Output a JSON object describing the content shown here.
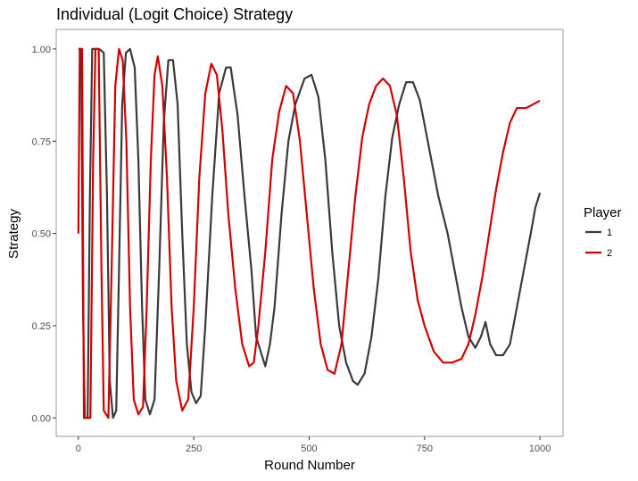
{
  "chart_data": {
    "type": "line",
    "title": "Individual (Logit Choice) Strategy",
    "x_label": "Round Number",
    "y_label": "Strategy",
    "legend_title": "Player",
    "legend_position": "right",
    "grid": false,
    "xlim": [
      -48,
      1050
    ],
    "ylim": [
      -0.05,
      1.053
    ],
    "xticks": [
      0,
      250,
      500,
      750,
      1000
    ],
    "yticks": [
      {
        "value": 0,
        "label": "0.00"
      },
      {
        "value": 0.25,
        "label": "0.25"
      },
      {
        "value": 0.5,
        "label": "0.50"
      },
      {
        "value": 0.75,
        "label": "0.75"
      },
      {
        "value": 1,
        "label": "1.00"
      }
    ],
    "series": [
      {
        "name": "1",
        "color": "#3a3a3a",
        "x": [
          0,
          6,
          10,
          14,
          20,
          25,
          30,
          36,
          45,
          55,
          62,
          68,
          75,
          82,
          88,
          95,
          103,
          112,
          122,
          130,
          138,
          145,
          155,
          165,
          175,
          185,
          195,
          205,
          215,
          225,
          235,
          245,
          255,
          265,
          275,
          290,
          305,
          320,
          330,
          345,
          360,
          375,
          385,
          395,
          405,
          415,
          425,
          440,
          455,
          470,
          490,
          505,
          520,
          535,
          550,
          565,
          580,
          595,
          605,
          620,
          635,
          650,
          665,
          680,
          695,
          710,
          725,
          740,
          760,
          780,
          800,
          815,
          830,
          845,
          860,
          872,
          882,
          892,
          905,
          920,
          935,
          950,
          965,
          980,
          990,
          1000
        ],
        "values": [
          1.0,
          1.0,
          0.3,
          0.0,
          0.0,
          0.6,
          1.0,
          1.0,
          1.0,
          0.99,
          0.6,
          0.1,
          0.0,
          0.02,
          0.4,
          0.85,
          0.99,
          1.0,
          0.95,
          0.7,
          0.3,
          0.05,
          0.01,
          0.05,
          0.4,
          0.8,
          0.97,
          0.97,
          0.85,
          0.5,
          0.2,
          0.07,
          0.04,
          0.06,
          0.25,
          0.6,
          0.88,
          0.95,
          0.95,
          0.82,
          0.6,
          0.4,
          0.22,
          0.18,
          0.14,
          0.2,
          0.3,
          0.55,
          0.75,
          0.85,
          0.92,
          0.93,
          0.87,
          0.7,
          0.45,
          0.25,
          0.15,
          0.1,
          0.09,
          0.12,
          0.22,
          0.38,
          0.6,
          0.76,
          0.85,
          0.91,
          0.91,
          0.86,
          0.73,
          0.6,
          0.5,
          0.4,
          0.3,
          0.22,
          0.19,
          0.22,
          0.26,
          0.2,
          0.17,
          0.17,
          0.2,
          0.3,
          0.4,
          0.5,
          0.57,
          0.61
        ]
      },
      {
        "name": "2",
        "color": "#d40000",
        "x": [
          0,
          3,
          8,
          12,
          26,
          32,
          37,
          44,
          50,
          55,
          65,
          72,
          80,
          88,
          96,
          104,
          112,
          120,
          130,
          140,
          148,
          157,
          165,
          172,
          182,
          192,
          202,
          212,
          225,
          238,
          250,
          262,
          275,
          288,
          300,
          312,
          325,
          340,
          355,
          370,
          380,
          390,
          405,
          420,
          435,
          450,
          465,
          480,
          495,
          510,
          525,
          540,
          555,
          570,
          585,
          600,
          615,
          630,
          645,
          660,
          675,
          690,
          705,
          720,
          735,
          750,
          770,
          790,
          810,
          830,
          845,
          860,
          875,
          890,
          905,
          920,
          935,
          950,
          970,
          985,
          1000
        ],
        "values": [
          0.5,
          1.0,
          1.0,
          0.0,
          0.0,
          0.7,
          1.0,
          1.0,
          0.4,
          0.02,
          0.0,
          0.4,
          0.9,
          1.0,
          0.97,
          0.75,
          0.3,
          0.05,
          0.01,
          0.03,
          0.3,
          0.7,
          0.93,
          0.98,
          0.9,
          0.65,
          0.3,
          0.1,
          0.02,
          0.05,
          0.3,
          0.65,
          0.88,
          0.96,
          0.93,
          0.78,
          0.55,
          0.35,
          0.2,
          0.14,
          0.15,
          0.25,
          0.45,
          0.7,
          0.83,
          0.9,
          0.88,
          0.75,
          0.55,
          0.35,
          0.2,
          0.13,
          0.12,
          0.2,
          0.4,
          0.6,
          0.76,
          0.85,
          0.9,
          0.92,
          0.9,
          0.82,
          0.65,
          0.45,
          0.32,
          0.25,
          0.18,
          0.15,
          0.15,
          0.16,
          0.2,
          0.28,
          0.38,
          0.5,
          0.62,
          0.72,
          0.8,
          0.84,
          0.84,
          0.85,
          0.86
        ]
      }
    ]
  }
}
